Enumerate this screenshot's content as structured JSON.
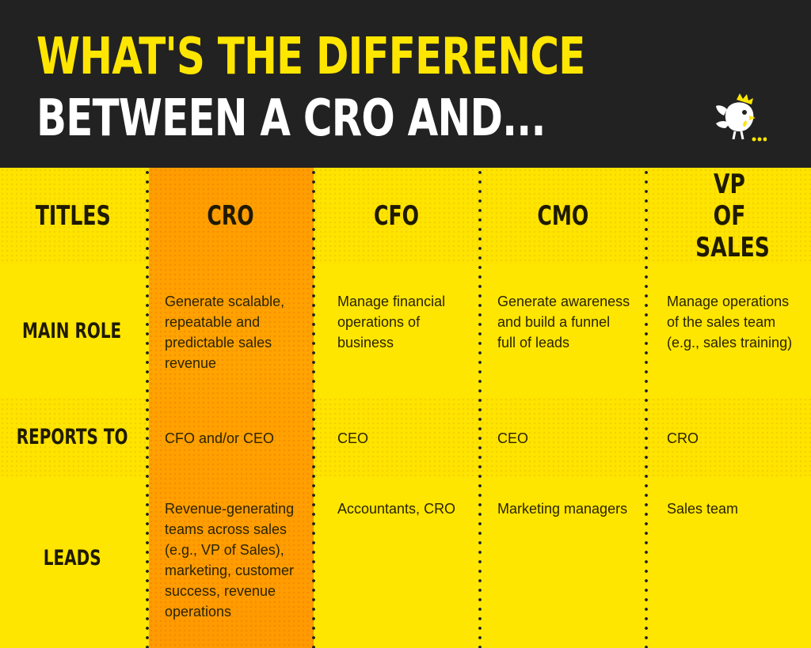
{
  "header": {
    "title_line1": "WHAT'S THE DIFFERENCE",
    "title_line2": "BETWEEN A CRO AND..."
  },
  "logo": {
    "icon": "rooster-mascot-icon"
  },
  "colors": {
    "header_bg": "#222222",
    "title_yellow": "#ffe600",
    "table_yellow": "#ffe600",
    "cro_highlight": "#ffa000"
  },
  "table": {
    "columns": [
      "TITLES",
      "CRO",
      "CFO",
      "CMO",
      "VP OF SALES"
    ],
    "rows": [
      {
        "label": "MAIN ROLE",
        "cells": [
          "Generate scalable, repeatable and predictable sales revenue",
          "Manage financial operations of business",
          "Generate awareness and build a funnel full of leads",
          "Manage operations of the sales team (e.g., sales training)"
        ]
      },
      {
        "label": "REPORTS TO",
        "cells": [
          "CFO and/or CEO",
          "CEO",
          "CEO",
          "CRO"
        ]
      },
      {
        "label": "LEADS",
        "cells": [
          "Revenue-generating teams across sales (e.g., VP of Sales), marketing, customer success, revenue operations",
          "Accountants, CRO",
          "Marketing managers",
          "Sales team"
        ]
      }
    ]
  }
}
